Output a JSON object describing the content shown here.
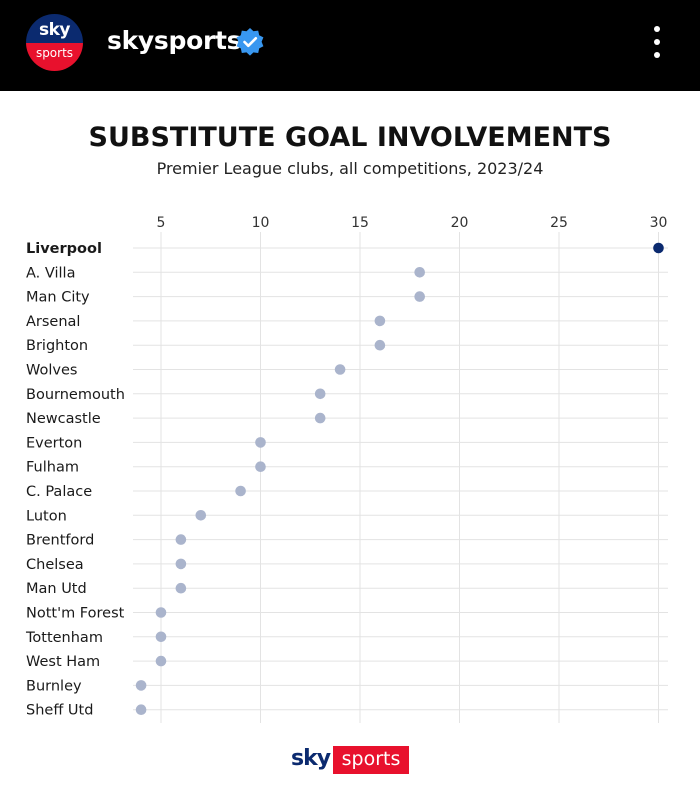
{
  "header": {
    "account_name": "skysports",
    "avatar_top": "sky",
    "avatar_bottom": "sports",
    "verified_icon": "verified-badge-icon",
    "menu_icon": "more-vertical-icon"
  },
  "colors": {
    "highlight_dot": "#0b2a6f",
    "dot": "#aab4cc",
    "grid": "#e3e3e3",
    "brand_red": "#e8112d",
    "brand_blue": "#0b2a6f"
  },
  "chart_data": {
    "type": "scatter",
    "title": "SUBSTITUTE GOAL INVOLVEMENTS",
    "subtitle": "Premier League clubs, all competitions, 2023/24",
    "xlabel": "",
    "ylabel": "",
    "xlim": [
      4,
      30
    ],
    "x_ticks": [
      5,
      10,
      15,
      20,
      25,
      30
    ],
    "grid": true,
    "highlight": "Liverpool",
    "categories": [
      "Liverpool",
      "A. Villa",
      "Man City",
      "Arsenal",
      "Brighton",
      "Wolves",
      "Bournemouth",
      "Newcastle",
      "Everton",
      "Fulham",
      "C. Palace",
      "Luton",
      "Brentford",
      "Chelsea",
      "Man Utd",
      "Nott'm Forest",
      "Tottenham",
      "West Ham",
      "Burnley",
      "Sheff Utd"
    ],
    "values": [
      30,
      18,
      18,
      16,
      16,
      14,
      13,
      13,
      10,
      10,
      9,
      7,
      6,
      6,
      6,
      5,
      5,
      5,
      4,
      4
    ]
  },
  "footer": {
    "logo_sky": "sky",
    "logo_sports": "sports"
  }
}
